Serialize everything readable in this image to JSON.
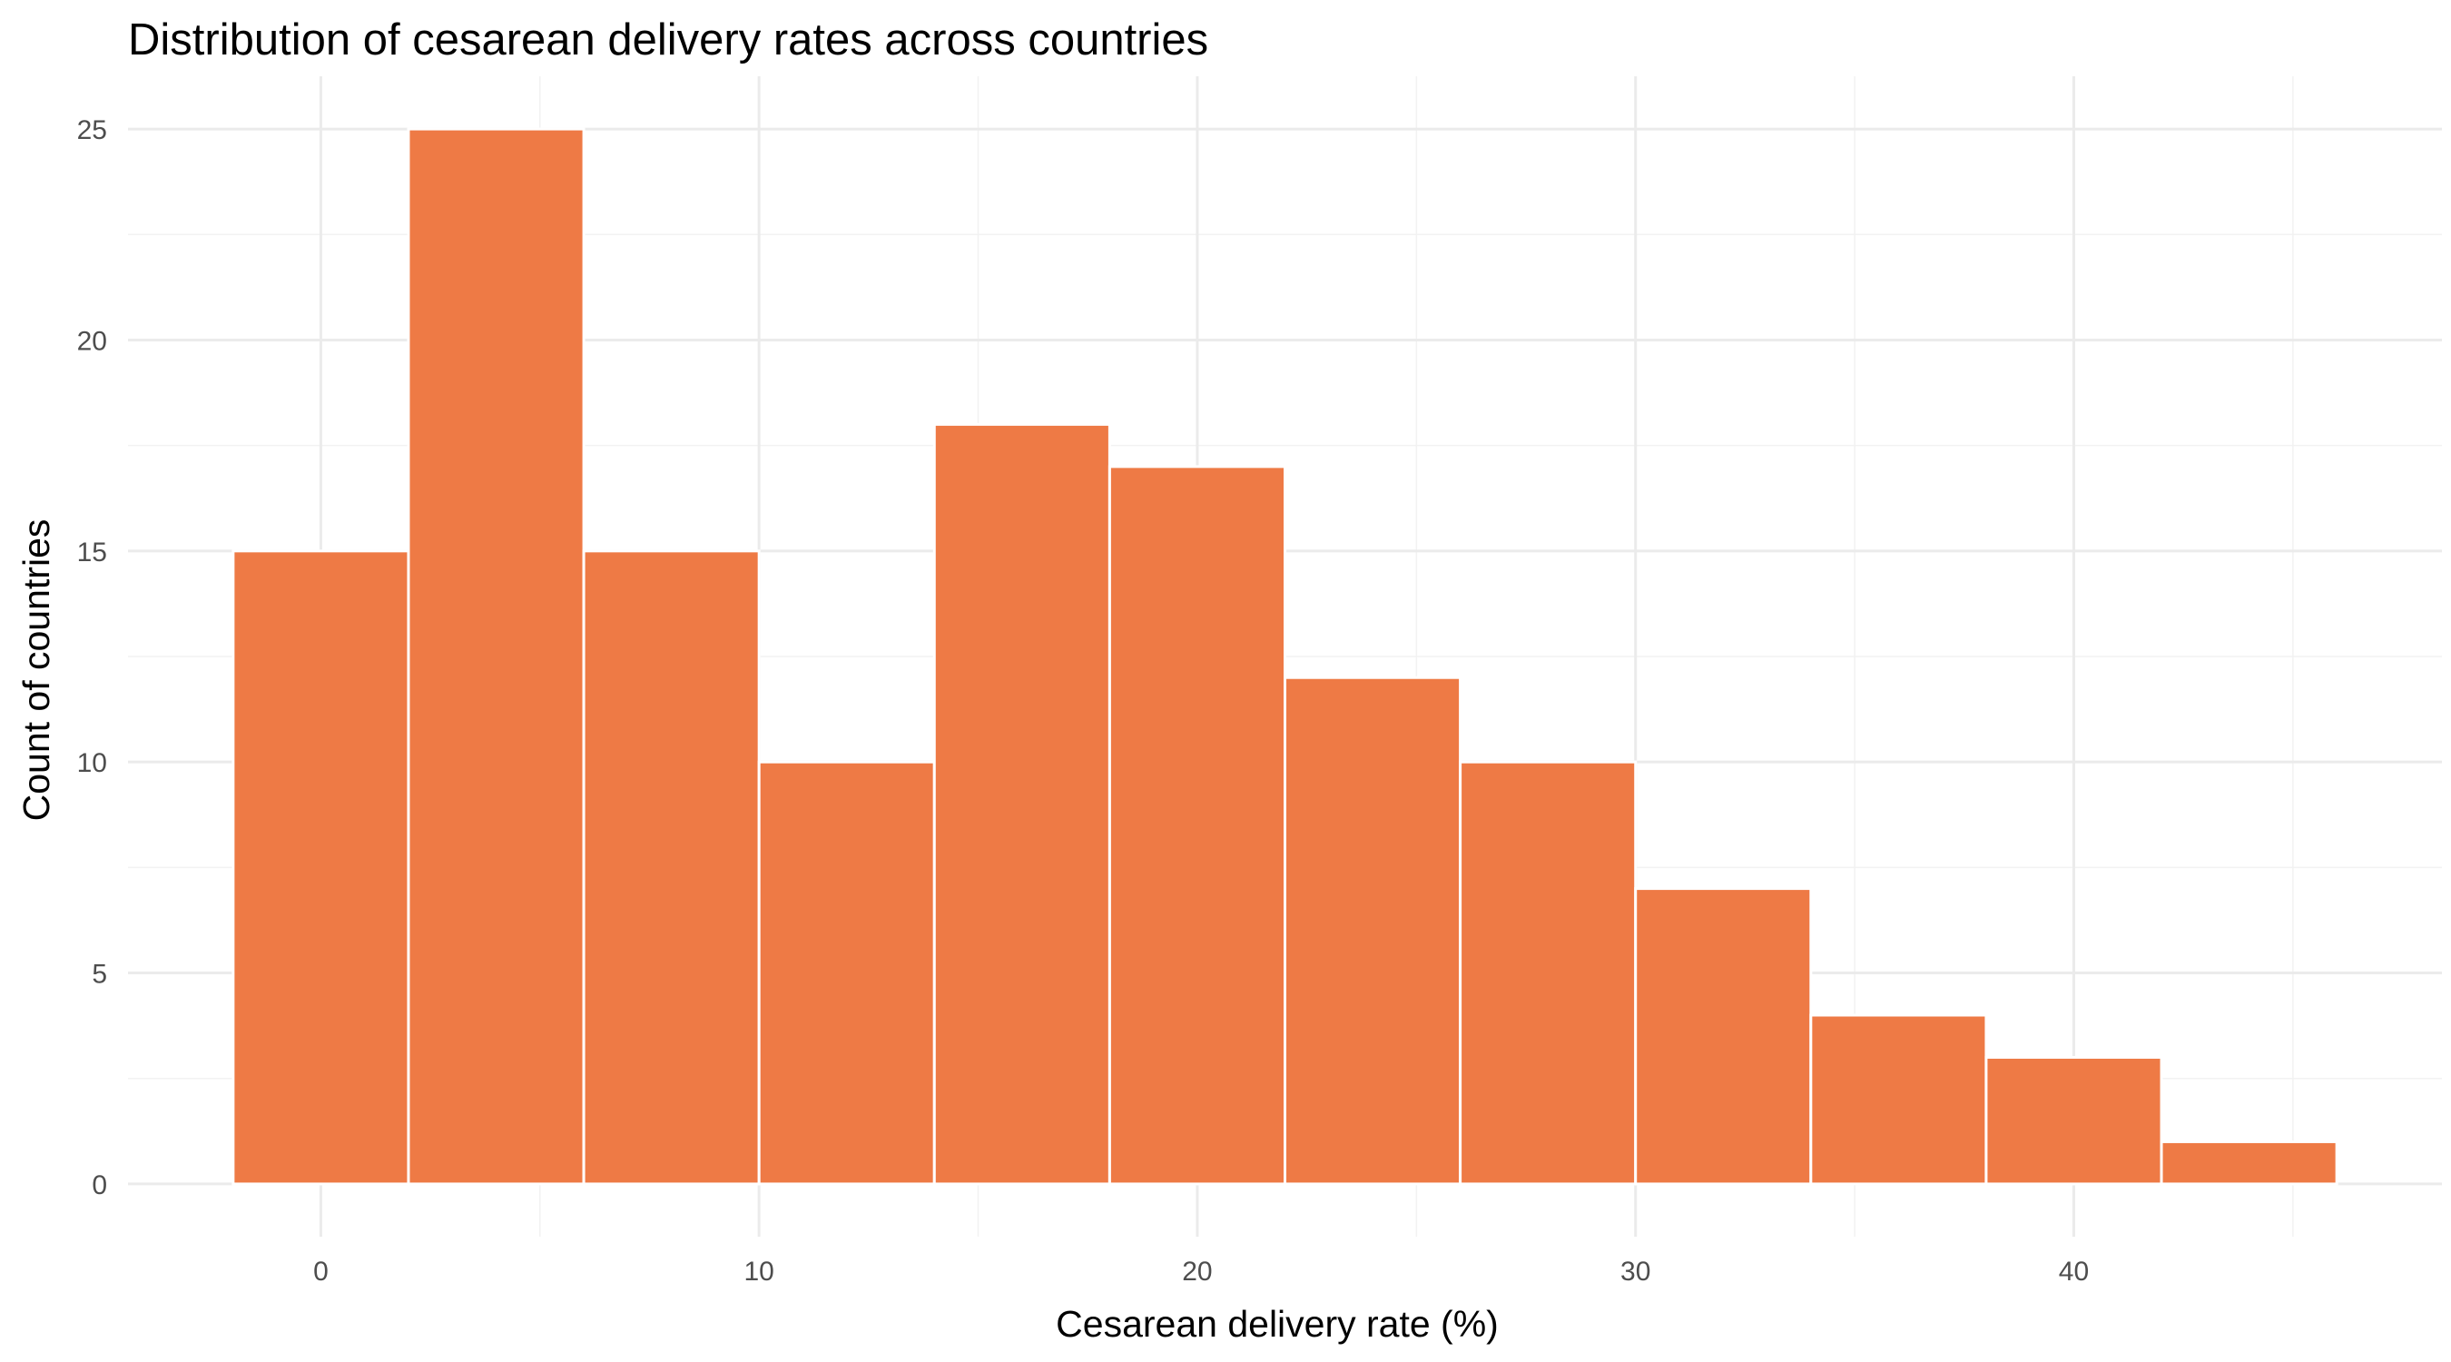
{
  "chart_data": {
    "type": "bar",
    "subtype": "histogram",
    "title": "Distribution of cesarean delivery rates across countries",
    "xlabel": "Cesarean delivery rate (%)",
    "ylabel": "Count of countries",
    "bin_width": 4,
    "bins": [
      {
        "x_start": -2,
        "x_end": 2,
        "count": 15
      },
      {
        "x_start": 2,
        "x_end": 6,
        "count": 25
      },
      {
        "x_start": 6,
        "x_end": 10,
        "count": 15
      },
      {
        "x_start": 10,
        "x_end": 14,
        "count": 10
      },
      {
        "x_start": 14,
        "x_end": 18,
        "count": 18
      },
      {
        "x_start": 18,
        "x_end": 22,
        "count": 17
      },
      {
        "x_start": 22,
        "x_end": 26,
        "count": 12
      },
      {
        "x_start": 26,
        "x_end": 30,
        "count": 10
      },
      {
        "x_start": 30,
        "x_end": 34,
        "count": 7
      },
      {
        "x_start": 34,
        "x_end": 38,
        "count": 4
      },
      {
        "x_start": 38,
        "x_end": 42,
        "count": 3
      },
      {
        "x_start": 42,
        "x_end": 46,
        "count": 1
      }
    ],
    "xlim": [
      -4.4,
      48.4
    ],
    "ylim": [
      -1.25,
      26.25
    ],
    "x_ticks": [
      0,
      10,
      20,
      30,
      40
    ],
    "y_ticks": [
      0,
      5,
      10,
      15,
      20,
      25
    ],
    "grid": true,
    "bar_color": "#ee7a45",
    "bar_edge_color": "#ffffff"
  }
}
